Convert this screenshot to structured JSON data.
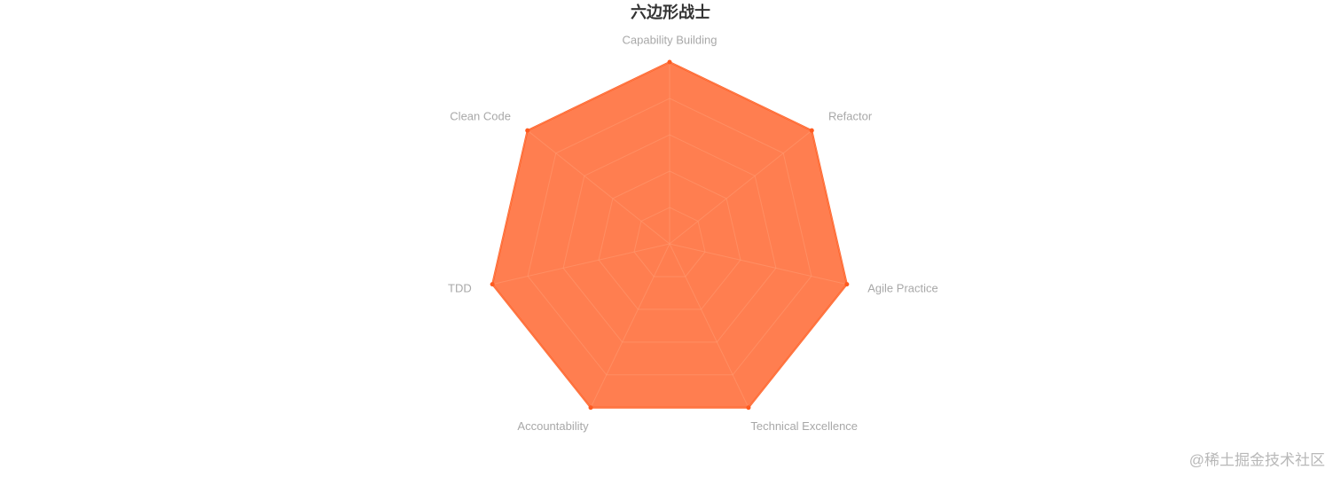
{
  "chart_data": {
    "type": "radar",
    "title": "六边形战士",
    "categories": [
      "Capability Building",
      "Refactor",
      "Agile Practice",
      "Technical Excellence",
      "Accountability",
      "TDD",
      "Clean Code"
    ],
    "values": [
      100,
      100,
      100,
      100,
      100,
      100,
      100
    ],
    "color": "#ff5a1f",
    "rlim": [
      0,
      100
    ],
    "rticks": [
      20,
      40,
      60,
      80,
      100
    ],
    "grid": true
  },
  "watermark": "@稀土掘金技术社区"
}
